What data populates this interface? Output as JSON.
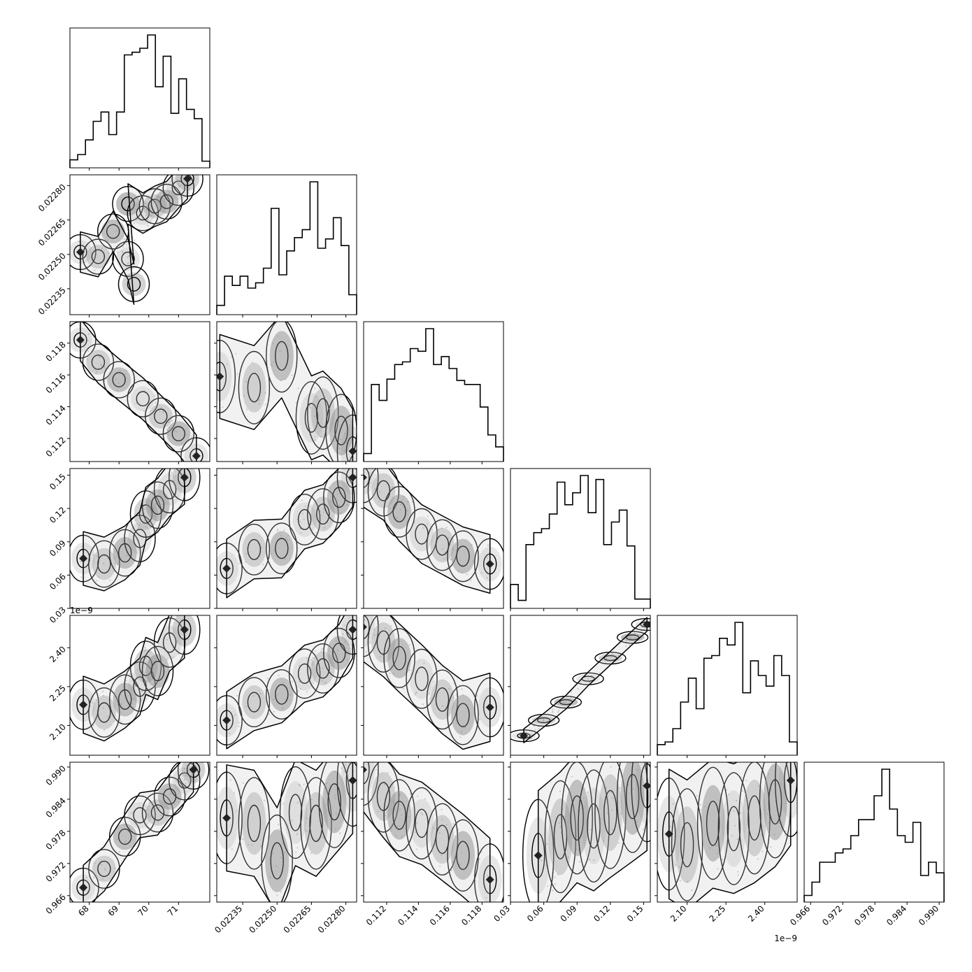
{
  "chart_data": {
    "type": "corner",
    "grid": false,
    "legend": "none",
    "title": "",
    "parameters": [
      {
        "ticks": [
          68,
          69,
          70,
          71
        ],
        "tick_labels": [
          "68",
          "69",
          "70",
          "71"
        ],
        "range": [
          67.35,
          72.05
        ],
        "offset_text": ""
      },
      {
        "ticks": [
          0.02235,
          0.0225,
          0.02265,
          0.0228
        ],
        "tick_labels": [
          "0.02235",
          "0.02250",
          "0.02265",
          "0.02280"
        ],
        "range": [
          0.022237,
          0.022847
        ],
        "offset_text": ""
      },
      {
        "ticks": [
          0.112,
          0.114,
          0.116,
          0.118
        ],
        "tick_labels": [
          "0.112",
          "0.114",
          "0.116",
          "0.118"
        ],
        "range": [
          0.11055,
          0.11935
        ],
        "offset_text": ""
      },
      {
        "ticks": [
          0.03,
          0.06,
          0.09,
          0.12,
          0.15
        ],
        "tick_labels": [
          "0.03",
          "0.06",
          "0.09",
          "0.12",
          "0.15"
        ],
        "range": [
          0.03,
          0.156
        ],
        "offset_text": ""
      },
      {
        "ticks": [
          2.1,
          2.25,
          2.4
        ],
        "tick_labels": [
          "2.10",
          "2.25",
          "2.40"
        ],
        "range": [
          1.985,
          2.525
        ],
        "offset_text": "1e−9"
      },
      {
        "ticks": [
          0.966,
          0.972,
          0.978,
          0.984,
          0.99
        ],
        "tick_labels": [
          "0.966",
          "0.972",
          "0.978",
          "0.984",
          "0.990"
        ],
        "range": [
          0.9648,
          0.9909
        ],
        "offset_text": ""
      }
    ],
    "histograms": [
      [
        0.06,
        0.1,
        0.21,
        0.35,
        0.42,
        0.25,
        0.42,
        0.85,
        0.87,
        0.9,
        1.0,
        0.61,
        0.84,
        0.41,
        0.67,
        0.44,
        0.37,
        0.05
      ],
      [
        0.07,
        0.29,
        0.22,
        0.29,
        0.2,
        0.24,
        0.35,
        0.8,
        0.3,
        0.48,
        0.58,
        0.64,
        1.0,
        0.5,
        0.57,
        0.73,
        0.52,
        0.15
      ],
      [
        0.06,
        0.58,
        0.46,
        0.62,
        0.73,
        0.75,
        0.85,
        0.83,
        1.0,
        0.73,
        0.79,
        0.7,
        0.61,
        0.58,
        0.58,
        0.41,
        0.2,
        0.11
      ],
      [
        0.18,
        0.06,
        0.48,
        0.57,
        0.6,
        0.71,
        0.95,
        0.78,
        0.87,
        1.0,
        0.72,
        0.97,
        0.48,
        0.65,
        0.74,
        0.47,
        0.07,
        0.07
      ],
      [
        0.08,
        0.1,
        0.2,
        0.4,
        0.58,
        0.35,
        0.73,
        0.75,
        0.88,
        0.83,
        1.0,
        0.47,
        0.71,
        0.6,
        0.52,
        0.75,
        0.6,
        0.1
      ],
      [
        0.05,
        0.15,
        0.3,
        0.3,
        0.37,
        0.4,
        0.5,
        0.62,
        0.62,
        0.8,
        1.0,
        0.7,
        0.5,
        0.45,
        0.6,
        0.2,
        0.3,
        0.22
      ]
    ],
    "pair_trends": [
      {
        "i": 1,
        "j": 0,
        "points": [
          [
            67.7,
            0.02251
          ],
          [
            68.3,
            0.02249
          ],
          [
            68.8,
            0.0226
          ],
          [
            69.3,
            0.02248
          ],
          [
            69.5,
            0.02237
          ],
          [
            69.3,
            0.02272
          ],
          [
            69.8,
            0.02268
          ],
          [
            70.2,
            0.02271
          ],
          [
            70.6,
            0.02273
          ],
          [
            71.0,
            0.02279
          ],
          [
            71.3,
            0.02283
          ]
        ],
        "width": 4e-05
      },
      {
        "i": 2,
        "j": 0,
        "points": [
          [
            67.7,
            0.1182
          ],
          [
            68.3,
            0.1168
          ],
          [
            69.0,
            0.1157
          ],
          [
            69.8,
            0.1145
          ],
          [
            70.4,
            0.1134
          ],
          [
            71.0,
            0.1123
          ],
          [
            71.6,
            0.1109
          ]
        ],
        "width": 0.0006
      },
      {
        "i": 2,
        "j": 1,
        "points": [
          [
            0.02225,
            0.1159
          ],
          [
            0.0224,
            0.1152
          ],
          [
            0.02252,
            0.1172
          ],
          [
            0.02265,
            0.1133
          ],
          [
            0.0227,
            0.1136
          ],
          [
            0.02278,
            0.1125
          ],
          [
            0.02283,
            0.1112
          ]
        ],
        "width": 0.0012
      },
      {
        "i": 3,
        "j": 0,
        "points": [
          [
            67.8,
            0.075
          ],
          [
            68.5,
            0.07
          ],
          [
            69.2,
            0.08
          ],
          [
            69.7,
            0.093
          ],
          [
            69.9,
            0.115
          ],
          [
            70.3,
            0.123
          ],
          [
            70.7,
            0.137
          ],
          [
            71.2,
            0.148
          ]
        ],
        "width": 0.011
      },
      {
        "i": 3,
        "j": 1,
        "points": [
          [
            0.02228,
            0.066
          ],
          [
            0.0224,
            0.083
          ],
          [
            0.02252,
            0.084
          ],
          [
            0.02262,
            0.11
          ],
          [
            0.0227,
            0.115
          ],
          [
            0.02277,
            0.13
          ],
          [
            0.02283,
            0.148
          ]
        ],
        "width": 0.012
      },
      {
        "i": 3,
        "j": 2,
        "points": [
          [
            0.1105,
            0.148
          ],
          [
            0.1118,
            0.136
          ],
          [
            0.1128,
            0.117
          ],
          [
            0.1142,
            0.097
          ],
          [
            0.1155,
            0.087
          ],
          [
            0.1168,
            0.077
          ],
          [
            0.1185,
            0.07
          ]
        ],
        "width": 0.012
      },
      {
        "i": 4,
        "j": 0,
        "points": [
          [
            67.8,
            2.18
          ],
          [
            68.5,
            2.15
          ],
          [
            69.2,
            2.2
          ],
          [
            69.7,
            2.25
          ],
          [
            69.9,
            2.33
          ],
          [
            70.3,
            2.31
          ],
          [
            70.7,
            2.42
          ],
          [
            71.2,
            2.47
          ]
        ],
        "width": 0.05
      },
      {
        "i": 4,
        "j": 1,
        "points": [
          [
            0.02228,
            2.12
          ],
          [
            0.0224,
            2.19
          ],
          [
            0.02252,
            2.22
          ],
          [
            0.02262,
            2.3
          ],
          [
            0.0227,
            2.32
          ],
          [
            0.02277,
            2.38
          ],
          [
            0.02283,
            2.47
          ]
        ],
        "width": 0.05
      },
      {
        "i": 4,
        "j": 2,
        "points": [
          [
            0.1105,
            2.48
          ],
          [
            0.1118,
            2.42
          ],
          [
            0.1128,
            2.36
          ],
          [
            0.1142,
            2.28
          ],
          [
            0.1155,
            2.2
          ],
          [
            0.1168,
            2.14
          ],
          [
            0.1185,
            2.17
          ]
        ],
        "width": 0.06
      },
      {
        "i": 4,
        "j": 3,
        "points": [
          [
            0.042,
            2.06
          ],
          [
            0.06,
            2.12
          ],
          [
            0.08,
            2.19
          ],
          [
            0.1,
            2.28
          ],
          [
            0.12,
            2.36
          ],
          [
            0.14,
            2.44
          ],
          [
            0.153,
            2.49
          ]
        ],
        "width": 0.012
      },
      {
        "i": 5,
        "j": 0,
        "points": [
          [
            67.8,
            0.9675
          ],
          [
            68.5,
            0.971
          ],
          [
            69.2,
            0.977
          ],
          [
            69.7,
            0.981
          ],
          [
            70.3,
            0.9815
          ],
          [
            70.7,
            0.9845
          ],
          [
            71.2,
            0.9875
          ],
          [
            71.5,
            0.9895
          ]
        ],
        "width": 0.0019
      },
      {
        "i": 5,
        "j": 1,
        "points": [
          [
            0.02228,
            0.9805
          ],
          [
            0.0224,
            0.9795
          ],
          [
            0.0225,
            0.9725
          ],
          [
            0.02258,
            0.9815
          ],
          [
            0.02267,
            0.9795
          ],
          [
            0.02275,
            0.9835
          ],
          [
            0.02283,
            0.9875
          ]
        ],
        "width": 0.0045
      },
      {
        "i": 5,
        "j": 2,
        "points": [
          [
            0.1105,
            0.9895
          ],
          [
            0.1118,
            0.9845
          ],
          [
            0.1128,
            0.981
          ],
          [
            0.1142,
            0.9795
          ],
          [
            0.1155,
            0.9765
          ],
          [
            0.1168,
            0.9735
          ],
          [
            0.1185,
            0.969
          ]
        ],
        "width": 0.0035
      },
      {
        "i": 5,
        "j": 3,
        "points": [
          [
            0.055,
            0.9735
          ],
          [
            0.075,
            0.977
          ],
          [
            0.09,
            0.9805
          ],
          [
            0.105,
            0.979
          ],
          [
            0.12,
            0.9815
          ],
          [
            0.14,
            0.9845
          ],
          [
            0.153,
            0.9865
          ]
        ],
        "width": 0.0055
      },
      {
        "i": 5,
        "j": 4,
        "points": [
          [
            2.03,
            0.9775
          ],
          [
            2.1,
            0.9755
          ],
          [
            2.2,
            0.9795
          ],
          [
            2.28,
            0.9785
          ],
          [
            2.36,
            0.9805
          ],
          [
            2.44,
            0.9835
          ],
          [
            2.5,
            0.9875
          ]
        ],
        "width": 0.0055
      }
    ]
  }
}
